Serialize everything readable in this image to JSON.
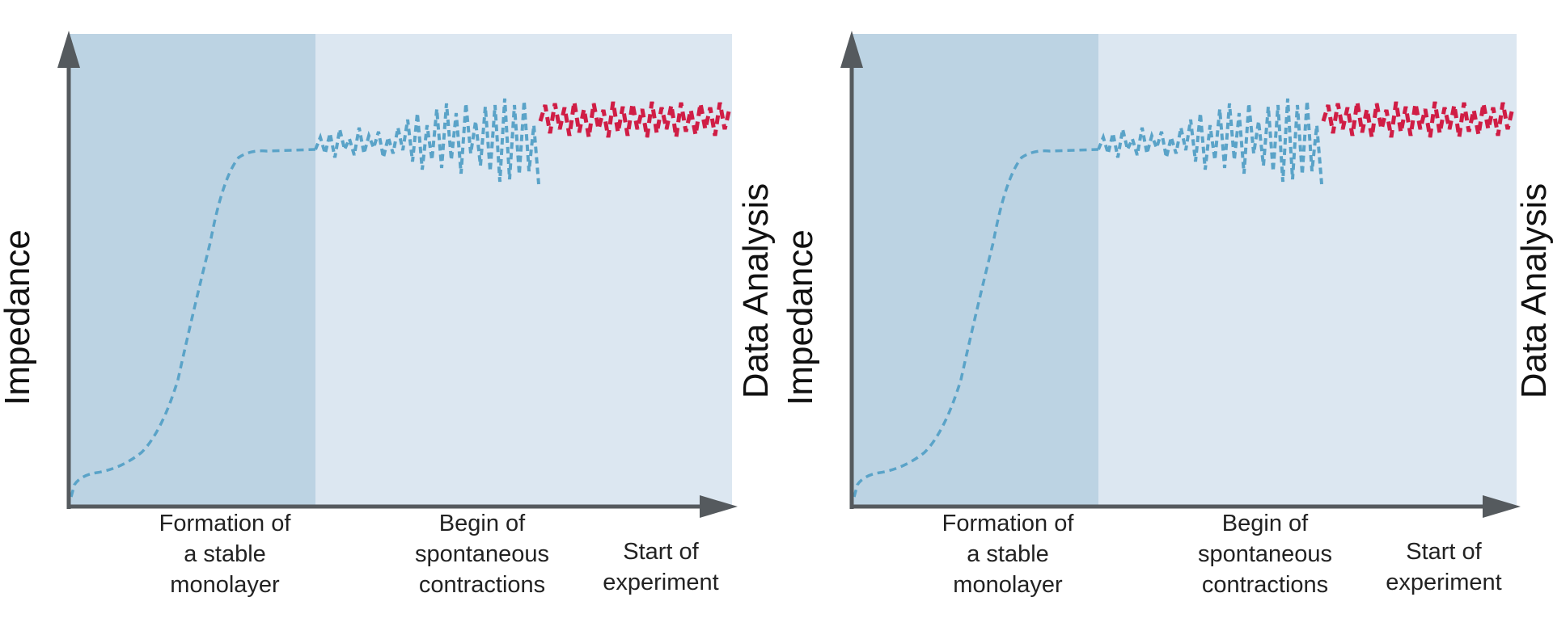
{
  "colors": {
    "phase1_bg": "#bcd3e3",
    "phase2_bg": "#dce7f1",
    "curve": "#5aa3c8",
    "experiment": "#d01d45",
    "axis": "#555a5e"
  },
  "panels": [
    {
      "y_label": "Impedance",
      "right_label": "Data Analysis",
      "phases": [
        {
          "lines": [
            "Formation of",
            "a stable",
            "monolayer"
          ]
        },
        {
          "lines": [
            "Begin of",
            "spontaneous",
            "contractions"
          ]
        },
        {
          "lines": [
            "Start of",
            "experiment"
          ]
        }
      ]
    },
    {
      "y_label": "Impedance",
      "right_label": "Data Analysis",
      "phases": [
        {
          "lines": [
            "Formation of",
            "a stable",
            "monolayer"
          ]
        },
        {
          "lines": [
            "Begin of",
            "spontaneous",
            "contractions"
          ]
        },
        {
          "lines": [
            "Start of",
            "experiment"
          ]
        }
      ]
    }
  ]
}
